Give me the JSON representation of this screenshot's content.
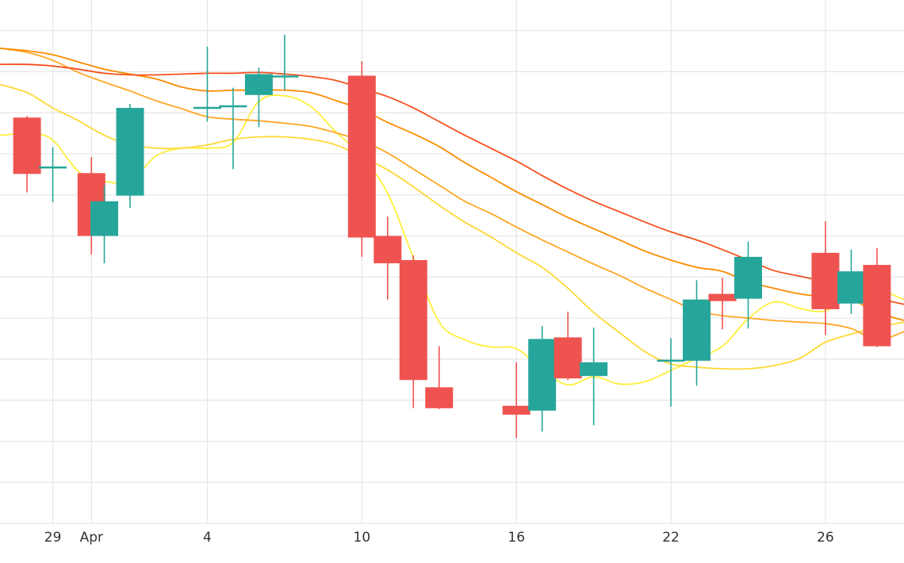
{
  "chart_data": {
    "type": "candlestick",
    "x_tick_labels": [
      {
        "day": 1,
        "label": "29"
      },
      {
        "day": 2.5,
        "label": "Apr"
      },
      {
        "day": 7,
        "label": "4"
      },
      {
        "day": 13,
        "label": "10"
      },
      {
        "day": 19,
        "label": "16"
      },
      {
        "day": 25,
        "label": "22"
      },
      {
        "day": 31,
        "label": "26"
      }
    ],
    "x_range": [
      -1.05,
      34.05
    ],
    "y_range": [
      0,
      650
    ],
    "grid": true,
    "up_color": "#26a69a",
    "down_color": "#ef5350",
    "candles": [
      {
        "day": 0,
        "open": 504,
        "close": 434,
        "high": 506,
        "low": 411
      },
      {
        "day": 1,
        "open": 442,
        "close": 442,
        "high": 467,
        "low": 399
      },
      {
        "day": 2.5,
        "open": 435,
        "close": 357,
        "high": 455,
        "low": 334
      },
      {
        "day": 3,
        "open": 357,
        "close": 400,
        "high": 420,
        "low": 323
      },
      {
        "day": 4,
        "open": 407,
        "close": 516,
        "high": 521,
        "low": 392
      },
      {
        "day": 7,
        "open": 516,
        "close": 516,
        "high": 592,
        "low": 499
      },
      {
        "day": 8,
        "open": 518,
        "close": 518,
        "high": 541,
        "low": 440
      },
      {
        "day": 9,
        "open": 532,
        "close": 558,
        "high": 566,
        "low": 492
      },
      {
        "day": 10,
        "open": 555,
        "close": 555,
        "high": 607,
        "low": 538
      },
      {
        "day": 13,
        "open": 556,
        "close": 355,
        "high": 574,
        "low": 331
      },
      {
        "day": 14,
        "open": 357,
        "close": 323,
        "high": 381,
        "low": 278
      },
      {
        "day": 15,
        "open": 327,
        "close": 178,
        "high": 333,
        "low": 143
      },
      {
        "day": 16,
        "open": 169,
        "close": 143,
        "high": 220,
        "low": 142
      },
      {
        "day": 19,
        "open": 146,
        "close": 135,
        "high": 200,
        "low": 106
      },
      {
        "day": 20,
        "open": 140,
        "close": 229,
        "high": 245,
        "low": 114
      },
      {
        "day": 21,
        "open": 231,
        "close": 180,
        "high": 263,
        "low": 178
      },
      {
        "day": 22,
        "open": 183,
        "close": 200,
        "high": 243,
        "low": 122
      },
      {
        "day": 25,
        "open": 202,
        "close": 202,
        "high": 230,
        "low": 145
      },
      {
        "day": 26,
        "open": 202,
        "close": 278,
        "high": 302,
        "low": 171
      },
      {
        "day": 27,
        "open": 285,
        "close": 276,
        "high": 305,
        "low": 241
      },
      {
        "day": 28,
        "open": 279,
        "close": 331,
        "high": 350,
        "low": 242
      },
      {
        "day": 31,
        "open": 336,
        "close": 266,
        "high": 375,
        "low": 234
      },
      {
        "day": 32,
        "open": 273,
        "close": 313,
        "high": 340,
        "low": 260
      },
      {
        "day": 33,
        "open": 321,
        "close": 220,
        "high": 342,
        "low": 219
      }
    ],
    "moving_averages": [
      {
        "color": "#ffef3a",
        "points": [
          [
            -1.05,
            482
          ],
          [
            0.2,
            484
          ],
          [
            1,
            476
          ],
          [
            2,
            437
          ],
          [
            3,
            425
          ],
          [
            4,
            425
          ],
          [
            5,
            456
          ],
          [
            6,
            466
          ],
          [
            7,
            466
          ],
          [
            8,
            473
          ],
          [
            9,
            524
          ],
          [
            10,
            531
          ],
          [
            11,
            518
          ],
          [
            12,
            486
          ],
          [
            13,
            456
          ],
          [
            14,
            410
          ],
          [
            15,
            330
          ],
          [
            16,
            250
          ],
          [
            17,
            228
          ],
          [
            18,
            219
          ],
          [
            19,
            217
          ],
          [
            20,
            191
          ],
          [
            21,
            172
          ],
          [
            22,
            182
          ],
          [
            23,
            173
          ],
          [
            24,
            176
          ],
          [
            25,
            190
          ],
          [
            26,
            205
          ],
          [
            27,
            220
          ],
          [
            28,
            254
          ],
          [
            29,
            275
          ],
          [
            30,
            267
          ],
          [
            31,
            264
          ],
          [
            32,
            285
          ],
          [
            33,
            290
          ],
          [
            34.05,
            278
          ]
        ]
      },
      {
        "color": "#fdd835",
        "points": [
          [
            -1.05,
            545
          ],
          [
            0,
            535
          ],
          [
            1,
            516
          ],
          [
            2,
            500
          ],
          [
            3,
            482
          ],
          [
            4,
            470
          ],
          [
            5,
            466
          ],
          [
            6,
            466
          ],
          [
            7,
            470
          ],
          [
            8,
            477
          ],
          [
            9,
            480
          ],
          [
            10,
            480
          ],
          [
            11,
            477
          ],
          [
            12,
            470
          ],
          [
            13,
            455
          ],
          [
            14,
            439
          ],
          [
            15,
            418
          ],
          [
            16,
            395
          ],
          [
            17,
            374
          ],
          [
            18,
            356
          ],
          [
            19,
            336
          ],
          [
            20,
            318
          ],
          [
            21,
            292
          ],
          [
            22,
            262
          ],
          [
            23,
            237
          ],
          [
            24,
            213
          ],
          [
            25,
            198
          ],
          [
            26,
            194
          ],
          [
            27,
            192
          ],
          [
            28,
            192
          ],
          [
            29,
            196
          ],
          [
            30,
            205
          ],
          [
            31,
            225
          ],
          [
            32,
            235
          ],
          [
            33,
            243
          ],
          [
            34.05,
            250
          ]
        ]
      },
      {
        "color": "#ffa726",
        "points": [
          [
            -1.05,
            590
          ],
          [
            0,
            585
          ],
          [
            1,
            575
          ],
          [
            2,
            560
          ],
          [
            3,
            548
          ],
          [
            4,
            537
          ],
          [
            5,
            525
          ],
          [
            6,
            515
          ],
          [
            7,
            505
          ],
          [
            8,
            502
          ],
          [
            9,
            500
          ],
          [
            10,
            497
          ],
          [
            11,
            493
          ],
          [
            12,
            485
          ],
          [
            13,
            475
          ],
          [
            14,
            460
          ],
          [
            15,
            440
          ],
          [
            16,
            420
          ],
          [
            17,
            400
          ],
          [
            18,
            385
          ],
          [
            19,
            368
          ],
          [
            20,
            352
          ],
          [
            21,
            337
          ],
          [
            22,
            322
          ],
          [
            23,
            308
          ],
          [
            24,
            292
          ],
          [
            25,
            278
          ],
          [
            26,
            264
          ],
          [
            27,
            258
          ],
          [
            28,
            255
          ],
          [
            29,
            252
          ],
          [
            30,
            250
          ],
          [
            31,
            248
          ],
          [
            32,
            242
          ],
          [
            33,
            228
          ],
          [
            34.05,
            238
          ]
        ]
      },
      {
        "color": "#fb8c00",
        "points": [
          [
            -1.05,
            590
          ],
          [
            0,
            587
          ],
          [
            1,
            582
          ],
          [
            2,
            573
          ],
          [
            3,
            564
          ],
          [
            4,
            558
          ],
          [
            5,
            552
          ],
          [
            6,
            542
          ],
          [
            7,
            537
          ],
          [
            8,
            538
          ],
          [
            9,
            538
          ],
          [
            10,
            538
          ],
          [
            11,
            535
          ],
          [
            12,
            525
          ],
          [
            13,
            514
          ],
          [
            14,
            498
          ],
          [
            15,
            484
          ],
          [
            16,
            468
          ],
          [
            17,
            448
          ],
          [
            18,
            430
          ],
          [
            19,
            412
          ],
          [
            20,
            396
          ],
          [
            21,
            380
          ],
          [
            22,
            366
          ],
          [
            23,
            352
          ],
          [
            24,
            338
          ],
          [
            25,
            327
          ],
          [
            26,
            318
          ],
          [
            27,
            313
          ],
          [
            28,
            300
          ],
          [
            29,
            292
          ],
          [
            30,
            285
          ],
          [
            31,
            281
          ],
          [
            32,
            278
          ],
          [
            33,
            262
          ],
          [
            34.05,
            252
          ]
        ]
      },
      {
        "color": "#f4511e",
        "points": [
          [
            -1.05,
            570
          ],
          [
            0,
            570
          ],
          [
            1,
            568
          ],
          [
            2,
            564
          ],
          [
            3,
            559
          ],
          [
            4,
            557
          ],
          [
            5,
            557
          ],
          [
            6,
            558
          ],
          [
            7,
            559
          ],
          [
            8,
            559
          ],
          [
            9,
            560
          ],
          [
            10,
            558
          ],
          [
            11,
            555
          ],
          [
            12,
            550
          ],
          [
            13,
            540
          ],
          [
            14,
            530
          ],
          [
            15,
            516
          ],
          [
            16,
            499
          ],
          [
            17,
            482
          ],
          [
            18,
            466
          ],
          [
            19,
            450
          ],
          [
            20,
            432
          ],
          [
            21,
            415
          ],
          [
            22,
            400
          ],
          [
            23,
            387
          ],
          [
            24,
            374
          ],
          [
            25,
            362
          ],
          [
            26,
            352
          ],
          [
            27,
            340
          ],
          [
            28,
            327
          ],
          [
            29,
            314
          ],
          [
            30,
            307
          ],
          [
            31,
            300
          ],
          [
            32,
            291
          ],
          [
            33,
            280
          ],
          [
            34.05,
            272
          ]
        ]
      }
    ]
  }
}
